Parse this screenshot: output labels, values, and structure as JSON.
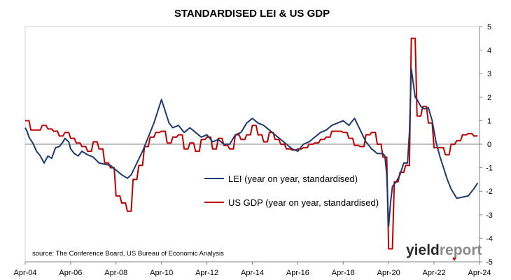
{
  "chart_data": {
    "type": "line",
    "title": "STANDARDISED LEI & US GDP",
    "xlabel": "",
    "ylabel": "",
    "x_tick_labels": [
      "Apr-04",
      "Apr-06",
      "Apr-08",
      "Apr-10",
      "Apr-12",
      "Apr-14",
      "Apr-16",
      "Apr-18",
      "Apr-20",
      "Apr-22",
      "Apr-24"
    ],
    "x_range": [
      "Apr-04",
      "Apr-24"
    ],
    "ylim": [
      -5,
      5
    ],
    "y_ticks": [
      -5,
      -4,
      -3,
      -2,
      -1,
      0,
      1,
      2,
      3,
      4,
      5
    ],
    "y_axis_side": "right",
    "grid": false,
    "legend_position": "center-right",
    "series": [
      {
        "name": "LEI (year on year, standardised)",
        "color": "#1f3a6e",
        "points": [
          [
            "Apr-04",
            0.7
          ],
          [
            "May-04",
            0.55
          ],
          [
            "Jun-04",
            0.3
          ],
          [
            "Aug-04",
            0.05
          ],
          [
            "Oct-04",
            -0.3
          ],
          [
            "Dec-04",
            -0.5
          ],
          [
            "Feb-05",
            -0.8
          ],
          [
            "Apr-05",
            -0.5
          ],
          [
            "Jun-05",
            -0.6
          ],
          [
            "Aug-05",
            -0.15
          ],
          [
            "Oct-05",
            -0.1
          ],
          [
            "Dec-05",
            0.1
          ],
          [
            "Jan-06",
            0.25
          ],
          [
            "Mar-06",
            0.1
          ],
          [
            "Apr-06",
            -0.2
          ],
          [
            "Jun-06",
            -0.4
          ],
          [
            "Aug-06",
            -0.5
          ],
          [
            "Oct-06",
            -0.3
          ],
          [
            "Jan-07",
            -0.45
          ],
          [
            "Apr-07",
            -0.55
          ],
          [
            "Jul-07",
            -0.8
          ],
          [
            "Oct-07",
            -0.85
          ],
          [
            "Jan-08",
            -0.9
          ],
          [
            "Apr-08",
            -1.1
          ],
          [
            "Jul-08",
            -1.3
          ],
          [
            "Oct-08",
            -1.45
          ],
          [
            "Dec-08",
            -1.3
          ],
          [
            "Mar-09",
            -0.8
          ],
          [
            "Jun-09",
            -0.3
          ],
          [
            "Sep-09",
            0.3
          ],
          [
            "Dec-09",
            0.9
          ],
          [
            "Feb-10",
            1.4
          ],
          [
            "Apr-10",
            1.9
          ],
          [
            "Jun-10",
            1.4
          ],
          [
            "Aug-10",
            0.9
          ],
          [
            "Oct-10",
            0.7
          ],
          [
            "Jan-11",
            0.8
          ],
          [
            "Apr-11",
            0.5
          ],
          [
            "Jul-11",
            0.7
          ],
          [
            "Oct-11",
            0.5
          ],
          [
            "Jan-12",
            0.3
          ],
          [
            "Apr-12",
            0.4
          ],
          [
            "Jul-12",
            0.1
          ],
          [
            "Oct-12",
            0.2
          ],
          [
            "Jan-13",
            0.0
          ],
          [
            "Apr-13",
            0.0
          ],
          [
            "Jul-13",
            0.4
          ],
          [
            "Oct-13",
            0.5
          ],
          [
            "Jan-14",
            0.9
          ],
          [
            "Apr-14",
            1.1
          ],
          [
            "Jul-14",
            0.9
          ],
          [
            "Oct-14",
            0.8
          ],
          [
            "Jan-15",
            0.6
          ],
          [
            "Apr-15",
            0.4
          ],
          [
            "Jul-15",
            0.2
          ],
          [
            "Oct-15",
            0.0
          ],
          [
            "Jan-16",
            -0.2
          ],
          [
            "Apr-16",
            -0.3
          ],
          [
            "Jul-16",
            0.0
          ],
          [
            "Oct-16",
            0.1
          ],
          [
            "Jan-17",
            0.3
          ],
          [
            "Apr-17",
            0.5
          ],
          [
            "Jul-17",
            0.6
          ],
          [
            "Oct-17",
            0.8
          ],
          [
            "Jan-18",
            0.9
          ],
          [
            "Apr-18",
            1.0
          ],
          [
            "Jul-18",
            0.8
          ],
          [
            "Oct-18",
            1.1
          ],
          [
            "Jan-19",
            0.6
          ],
          [
            "Apr-19",
            0.1
          ],
          [
            "Jul-19",
            -0.2
          ],
          [
            "Oct-19",
            -0.4
          ],
          [
            "Jan-20",
            -0.4
          ],
          [
            "Feb-20",
            -0.5
          ],
          [
            "Mar-20",
            -1.3
          ],
          [
            "Apr-20",
            -3.5
          ],
          [
            "May-20",
            -2.5
          ],
          [
            "Jun-20",
            -1.8
          ],
          [
            "Jul-20",
            -1.7
          ],
          [
            "Aug-20",
            -1.6
          ],
          [
            "Oct-20",
            -1.3
          ],
          [
            "Dec-20",
            -0.8
          ],
          [
            "Feb-21",
            -0.8
          ],
          [
            "Mar-21",
            0.5
          ],
          [
            "Apr-21",
            3.2
          ],
          [
            "May-21",
            2.6
          ],
          [
            "Jun-21",
            2.0
          ],
          [
            "Jul-21",
            1.9
          ],
          [
            "Sep-21",
            1.6
          ],
          [
            "Nov-21",
            1.5
          ],
          [
            "Jan-22",
            1.55
          ],
          [
            "Mar-22",
            1.0
          ],
          [
            "May-22",
            0.1
          ],
          [
            "Jul-22",
            -0.5
          ],
          [
            "Sep-22",
            -1.0
          ],
          [
            "Nov-22",
            -1.5
          ],
          [
            "Jan-23",
            -1.9
          ],
          [
            "Apr-23",
            -2.3
          ],
          [
            "Jul-23",
            -2.25
          ],
          [
            "Oct-23",
            -2.2
          ],
          [
            "Jan-24",
            -1.9
          ],
          [
            "Mar-24",
            -1.65
          ]
        ]
      },
      {
        "name": "US GDP (year on year, standardised)",
        "color": "#c00000",
        "points": [
          [
            "Apr-04",
            1.0
          ],
          [
            "Jun-04",
            1.0
          ],
          [
            "Jul-04",
            0.6
          ],
          [
            "Sep-04",
            0.6
          ],
          [
            "Oct-04",
            0.6
          ],
          [
            "Dec-04",
            0.6
          ],
          [
            "Jan-05",
            0.8
          ],
          [
            "Mar-05",
            0.8
          ],
          [
            "Apr-05",
            0.65
          ],
          [
            "Jun-05",
            0.65
          ],
          [
            "Jul-05",
            0.55
          ],
          [
            "Sep-05",
            0.55
          ],
          [
            "Oct-05",
            0.35
          ],
          [
            "Dec-05",
            0.35
          ],
          [
            "Jan-06",
            0.5
          ],
          [
            "Mar-06",
            0.5
          ],
          [
            "Apr-06",
            0.25
          ],
          [
            "Jun-06",
            0.25
          ],
          [
            "Jul-06",
            0.05
          ],
          [
            "Sep-06",
            0.05
          ],
          [
            "Oct-06",
            -0.1
          ],
          [
            "Dec-06",
            -0.1
          ],
          [
            "Jan-07",
            -0.3
          ],
          [
            "Mar-07",
            -0.3
          ],
          [
            "Apr-07",
            0.1
          ],
          [
            "Jun-07",
            0.1
          ],
          [
            "Jul-07",
            -0.2
          ],
          [
            "Sep-07",
            -0.2
          ],
          [
            "Oct-07",
            -0.8
          ],
          [
            "Dec-07",
            -0.8
          ],
          [
            "Jan-08",
            -1.0
          ],
          [
            "Mar-08",
            -1.0
          ],
          [
            "Apr-08",
            -2.2
          ],
          [
            "Jun-08",
            -2.2
          ],
          [
            "Jul-08",
            -2.5
          ],
          [
            "Sep-08",
            -2.5
          ],
          [
            "Oct-08",
            -2.85
          ],
          [
            "Dec-08",
            -2.85
          ],
          [
            "Jan-09",
            -1.5
          ],
          [
            "Mar-09",
            -1.5
          ],
          [
            "Apr-09",
            -0.9
          ],
          [
            "Jun-09",
            -0.9
          ],
          [
            "Jul-09",
            -0.1
          ],
          [
            "Sep-09",
            -0.1
          ],
          [
            "Oct-09",
            0.3
          ],
          [
            "Dec-09",
            0.3
          ],
          [
            "Jan-10",
            0.5
          ],
          [
            "Mar-10",
            0.5
          ],
          [
            "Apr-10",
            0.55
          ],
          [
            "Jun-10",
            0.55
          ],
          [
            "Jul-10",
            0.05
          ],
          [
            "Sep-10",
            0.05
          ],
          [
            "Oct-10",
            0.3
          ],
          [
            "Dec-10",
            0.3
          ],
          [
            "Jan-11",
            0.4
          ],
          [
            "Mar-11",
            0.4
          ],
          [
            "Apr-11",
            -0.2
          ],
          [
            "Jun-11",
            -0.2
          ],
          [
            "Jul-11",
            0.05
          ],
          [
            "Sep-11",
            0.05
          ],
          [
            "Oct-11",
            -0.3
          ],
          [
            "Dec-11",
            -0.3
          ],
          [
            "Jan-12",
            0.2
          ],
          [
            "Mar-12",
            0.2
          ],
          [
            "Apr-12",
            0.3
          ],
          [
            "Jun-12",
            0.3
          ],
          [
            "Jul-12",
            -0.2
          ],
          [
            "Sep-12",
            -0.2
          ],
          [
            "Oct-12",
            0.25
          ],
          [
            "Dec-12",
            0.25
          ],
          [
            "Jan-13",
            -0.05
          ],
          [
            "Mar-13",
            -0.05
          ],
          [
            "Apr-13",
            -0.2
          ],
          [
            "Jun-13",
            -0.2
          ],
          [
            "Jul-13",
            0.4
          ],
          [
            "Sep-13",
            0.4
          ],
          [
            "Oct-13",
            0.2
          ],
          [
            "Dec-13",
            0.2
          ],
          [
            "Jan-14",
            0.4
          ],
          [
            "Mar-14",
            0.4
          ],
          [
            "Apr-14",
            0.8
          ],
          [
            "Jun-14",
            0.8
          ],
          [
            "Jul-14",
            0.4
          ],
          [
            "Sep-14",
            0.4
          ],
          [
            "Oct-14",
            0.1
          ],
          [
            "Dec-14",
            0.1
          ],
          [
            "Jan-15",
            0.5
          ],
          [
            "Mar-15",
            0.5
          ],
          [
            "Apr-15",
            0.2
          ],
          [
            "Jun-15",
            0.2
          ],
          [
            "Jul-15",
            0.0
          ],
          [
            "Sep-15",
            0.0
          ],
          [
            "Oct-15",
            -0.2
          ],
          [
            "Dec-15",
            -0.2
          ],
          [
            "Jan-16",
            -0.25
          ],
          [
            "Mar-16",
            -0.25
          ],
          [
            "Apr-16",
            -0.2
          ],
          [
            "Jun-16",
            -0.2
          ],
          [
            "Jul-16",
            -0.15
          ],
          [
            "Sep-16",
            -0.15
          ],
          [
            "Oct-16",
            0.0
          ],
          [
            "Dec-16",
            0.0
          ],
          [
            "Jan-17",
            0.05
          ],
          [
            "Mar-17",
            0.05
          ],
          [
            "Apr-17",
            0.2
          ],
          [
            "Jun-17",
            0.2
          ],
          [
            "Jul-17",
            0.3
          ],
          [
            "Sep-17",
            0.3
          ],
          [
            "Oct-17",
            0.55
          ],
          [
            "Dec-17",
            0.55
          ],
          [
            "Jan-18",
            0.55
          ],
          [
            "Mar-18",
            0.55
          ],
          [
            "Apr-18",
            0.5
          ],
          [
            "Jun-18",
            0.5
          ],
          [
            "Jul-18",
            0.25
          ],
          [
            "Sep-18",
            0.25
          ],
          [
            "Oct-18",
            -0.05
          ],
          [
            "Dec-18",
            -0.05
          ],
          [
            "Jan-19",
            -0.1
          ],
          [
            "Mar-19",
            -0.1
          ],
          [
            "Apr-19",
            0.4
          ],
          [
            "Jun-19",
            0.4
          ],
          [
            "Jul-19",
            0.5
          ],
          [
            "Sep-19",
            0.5
          ],
          [
            "Oct-19",
            0.0
          ],
          [
            "Dec-19",
            0.0
          ],
          [
            "Jan-20",
            -0.55
          ],
          [
            "Mar-20",
            -0.55
          ],
          [
            "Apr-20",
            -4.45
          ],
          [
            "Jun-20",
            -4.45
          ],
          [
            "Jul-20",
            -1.6
          ],
          [
            "Sep-20",
            -1.6
          ],
          [
            "Oct-20",
            -1.2
          ],
          [
            "Dec-20",
            -1.2
          ],
          [
            "Jan-21",
            -0.9
          ],
          [
            "Mar-21",
            -0.9
          ],
          [
            "Apr-21",
            4.5
          ],
          [
            "Jun-21",
            4.5
          ],
          [
            "Jul-21",
            1.2
          ],
          [
            "Sep-21",
            1.2
          ],
          [
            "Oct-21",
            1.6
          ],
          [
            "Dec-21",
            1.6
          ],
          [
            "Jan-22",
            0.9
          ],
          [
            "Mar-22",
            0.9
          ],
          [
            "Apr-22",
            -0.15
          ],
          [
            "Jun-22",
            -0.15
          ],
          [
            "Jul-22",
            -0.15
          ],
          [
            "Sep-22",
            -0.15
          ],
          [
            "Oct-22",
            -0.45
          ],
          [
            "Dec-22",
            -0.45
          ],
          [
            "Jan-23",
            0.0
          ],
          [
            "Mar-23",
            0.0
          ],
          [
            "Apr-23",
            0.15
          ],
          [
            "Jun-23",
            0.15
          ],
          [
            "Jul-23",
            0.4
          ],
          [
            "Sep-23",
            0.4
          ],
          [
            "Oct-23",
            0.45
          ],
          [
            "Dec-23",
            0.45
          ],
          [
            "Jan-24",
            0.35
          ],
          [
            "Mar-24",
            0.35
          ]
        ]
      }
    ],
    "source_note": "source: The Conference Board, US Bureau of Economic Analysis"
  },
  "branding": {
    "logo_part1": "yield",
    "logo_part2": "report",
    "logo_accent_color": "#c00000"
  }
}
